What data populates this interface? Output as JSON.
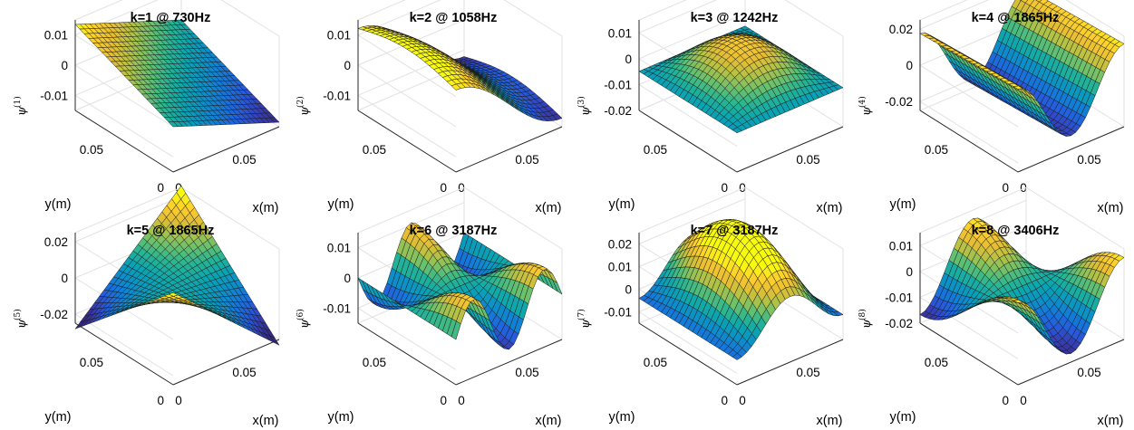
{
  "chart_data": [
    {
      "type": "surface",
      "title": "k=1 @ 730Hz",
      "k": 1,
      "frequency_hz": 730,
      "xlabel": "x(m)",
      "ylabel": "y(m)",
      "zlabel_symbol": "ψ",
      "zlabel_superscript": "(1)",
      "x_ticks": [
        "0",
        "0.05"
      ],
      "y_ticks": [
        "0",
        "0.05"
      ],
      "z_ticks": [
        "0.01",
        "0",
        "-0.01"
      ],
      "zlim": [
        -0.015,
        0.015
      ],
      "mode": [
        1,
        1
      ],
      "color": "mode-shape",
      "colormap": "parula"
    },
    {
      "type": "surface",
      "title": "k=2 @ 1058Hz",
      "k": 2,
      "frequency_hz": 1058,
      "xlabel": "x(m)",
      "ylabel": "y(m)",
      "zlabel_symbol": "ψ",
      "zlabel_superscript": "(2)",
      "x_ticks": [
        "0",
        "0.05"
      ],
      "y_ticks": [
        "0",
        "0.05"
      ],
      "z_ticks": [
        "0.01",
        "0",
        "-0.01"
      ],
      "zlim": [
        -0.015,
        0.015
      ],
      "mode": [
        2,
        1
      ],
      "color": "mode-shape",
      "colormap": "parula"
    },
    {
      "type": "surface",
      "title": "k=3 @ 1242Hz",
      "k": 3,
      "frequency_hz": 1242,
      "xlabel": "x(m)",
      "ylabel": "y(m)",
      "zlabel_symbol": "ψ",
      "zlabel_superscript": "(3)",
      "x_ticks": [
        "0",
        "0.05"
      ],
      "y_ticks": [
        "0",
        "0.05"
      ],
      "z_ticks": [
        "0.01",
        "0",
        "-0.01",
        "-0.02"
      ],
      "zlim": [
        -0.02,
        0.015
      ],
      "mode": [
        0,
        0
      ],
      "color": "mode-shape",
      "colormap": "parula"
    },
    {
      "type": "surface",
      "title": "k=4 @ 1865Hz",
      "k": 4,
      "frequency_hz": 1865,
      "xlabel": "x(m)",
      "ylabel": "y(m)",
      "zlabel_symbol": "ψ",
      "zlabel_superscript": "(4)",
      "x_ticks": [
        "0",
        "0.05"
      ],
      "y_ticks": [
        "0",
        "0.05"
      ],
      "z_ticks": [
        "0.02",
        "0",
        "-0.02"
      ],
      "zlim": [
        -0.025,
        0.025
      ],
      "mode": [
        3,
        1
      ],
      "color": "mode-shape",
      "colormap": "parula"
    },
    {
      "type": "surface",
      "title": "k=5 @ 1865Hz",
      "k": 5,
      "frequency_hz": 1865,
      "xlabel": "x(m)",
      "ylabel": "y(m)",
      "zlabel_symbol": "ψ",
      "zlabel_superscript": "(5)",
      "x_ticks": [
        "0",
        "0.05"
      ],
      "y_ticks": [
        "0",
        "0.05"
      ],
      "z_ticks": [
        "0.02",
        "0",
        "-0.02"
      ],
      "zlim": [
        -0.025,
        0.025
      ],
      "mode": [
        4,
        1
      ],
      "color": "mode-shape",
      "colormap": "parula"
    },
    {
      "type": "surface",
      "title": "k=6 @ 3187Hz",
      "k": 6,
      "frequency_hz": 3187,
      "xlabel": "x(m)",
      "ylabel": "y(m)",
      "zlabel_symbol": "ψ",
      "zlabel_superscript": "(6)",
      "x_ticks": [
        "0",
        "0.05"
      ],
      "y_ticks": [
        "0",
        "0.05"
      ],
      "z_ticks": [
        "0.01",
        "0",
        "-0.01"
      ],
      "zlim": [
        -0.015,
        0.015
      ],
      "mode": [
        5,
        1
      ],
      "color": "mode-shape",
      "colormap": "parula"
    },
    {
      "type": "surface",
      "title": "k=7 @ 3187Hz",
      "k": 7,
      "frequency_hz": 3187,
      "xlabel": "x(m)",
      "ylabel": "y(m)",
      "zlabel_symbol": "ψ",
      "zlabel_superscript": "(7)",
      "x_ticks": [
        "0",
        "0.05"
      ],
      "y_ticks": [
        "0",
        "0.05"
      ],
      "z_ticks": [
        "0.02",
        "0.01",
        "0",
        "-0.01"
      ],
      "zlim": [
        -0.015,
        0.025
      ],
      "mode": [
        6,
        1
      ],
      "color": "mode-shape",
      "colormap": "parula"
    },
    {
      "type": "surface",
      "title": "k=8 @ 3406Hz",
      "k": 8,
      "frequency_hz": 3406,
      "xlabel": "x(m)",
      "ylabel": "y(m)",
      "zlabel_symbol": "ψ",
      "zlabel_superscript": "(8)",
      "x_ticks": [
        "0",
        "0.05"
      ],
      "y_ticks": [
        "0",
        "0.05"
      ],
      "z_ticks": [
        "0.01",
        "0",
        "-0.01",
        "-0.02"
      ],
      "zlim": [
        -0.02,
        0.015
      ],
      "mode": [
        7,
        1
      ],
      "color": "mode-shape",
      "colormap": "parula"
    }
  ]
}
